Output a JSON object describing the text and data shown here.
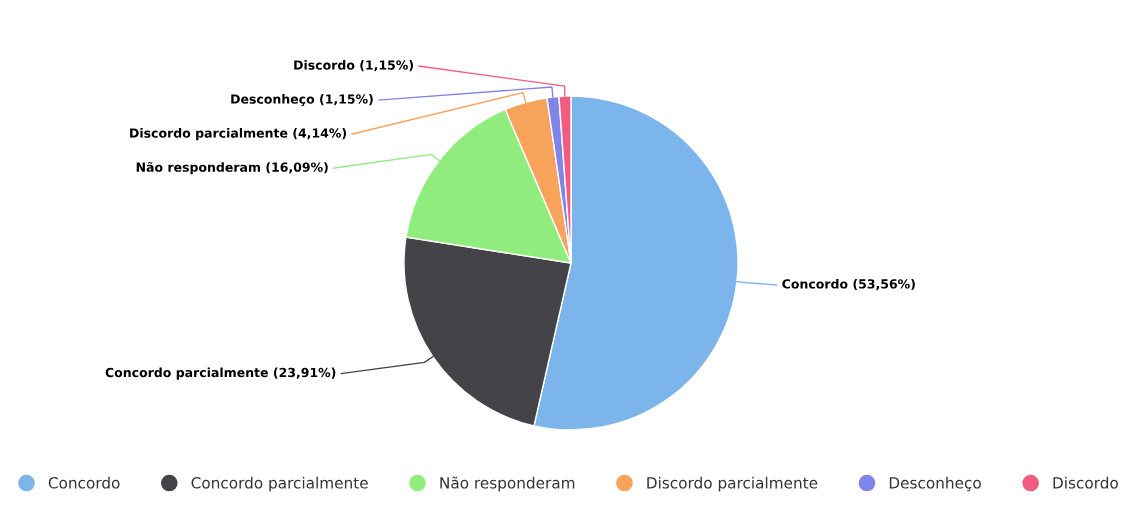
{
  "chart_data": {
    "type": "pie",
    "categories": [
      "Concordo",
      "Concordo parcialmente",
      "Não responderam",
      "Discordo parcialmente",
      "Desconheço",
      "Discordo"
    ],
    "values": [
      53.56,
      23.91,
      16.09,
      4.14,
      1.15,
      1.15
    ],
    "colors": [
      "#7cb5ec",
      "#434348",
      "#90ed7d",
      "#f7a35c",
      "#8085e9",
      "#f15c80"
    ],
    "value_labels": [
      "Concordo (53,56%)",
      "Concordo parcialmente (23,91%)",
      "Não responderam (16,09%)",
      "Discordo parcialmente (4,14%)",
      "Desconheço (1,15%)",
      "Discordo (1,15%)"
    ],
    "legend": "bottom"
  }
}
